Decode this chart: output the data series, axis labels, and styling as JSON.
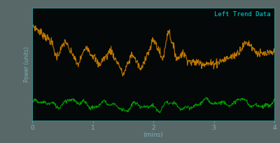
{
  "title": "Left Trend Data",
  "title_color": "#00d8d8",
  "xlabel": "(mins)",
  "xlabel_color": "#7ab0b8",
  "ylabel": "Power (units)",
  "ylabel_color": "#7ab0b8",
  "background_color": "#050808",
  "figure_bg": "#586868",
  "tick_color": "#7ab0b8",
  "xlim": [
    0,
    4
  ],
  "xticks": [
    0,
    1,
    2,
    3,
    4
  ],
  "ylim": [
    0,
    1
  ],
  "orange_color": "#c07800",
  "green_color": "#009900",
  "border_color": "#3a8888",
  "linewidth": 0.8
}
